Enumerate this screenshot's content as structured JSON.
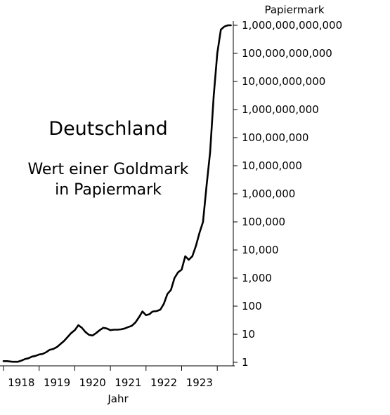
{
  "chart_data": {
    "type": "line",
    "title": "Deutschland",
    "subtitle_lines": [
      "Wert einer Goldmark",
      "in Papiermark"
    ],
    "xlabel": "Jahr",
    "ylabel": "Papiermark",
    "y_scale": "log",
    "ylim": [
      1,
      1000000000000
    ],
    "xlim": [
      1917.5,
      1923.95
    ],
    "x_ticks": [
      1918,
      1919,
      1920,
      1921,
      1922,
      1923
    ],
    "x_tick_labels": [
      "1918",
      "1919",
      "1920",
      "1921",
      "1922",
      "1923"
    ],
    "y_ticks": [
      1,
      10,
      100,
      1000,
      10000,
      100000,
      1000000,
      10000000,
      100000000,
      1000000000,
      10000000000,
      100000000000,
      1000000000000
    ],
    "y_tick_labels": [
      "1",
      "10",
      "100",
      "1,000",
      "10,000",
      "100,000",
      "1,000,000",
      "10,000,000",
      "100,000,000",
      "1,000,000,000",
      "10,000,000,000",
      "100,000,000,000",
      "1,000,000,000,000"
    ],
    "grid": false,
    "line_color": "#000000",
    "series": [
      {
        "x": [
          1917.5,
          1917.6,
          1917.75,
          1917.9,
          1918.0,
          1918.1,
          1918.2,
          1918.3,
          1918.4,
          1918.5,
          1918.6,
          1918.7,
          1918.8,
          1918.9,
          1919.0,
          1919.1,
          1919.2,
          1919.3,
          1919.4,
          1919.5,
          1919.6,
          1919.7,
          1919.8,
          1919.9,
          1920.0,
          1920.1,
          1920.2,
          1920.3,
          1920.4,
          1920.5,
          1920.6,
          1920.7,
          1920.8,
          1920.9,
          1921.0,
          1921.1,
          1921.2,
          1921.3,
          1921.4,
          1921.5,
          1921.6,
          1921.65,
          1921.7,
          1921.8,
          1921.9,
          1922.0,
          1922.1,
          1922.2,
          1922.3,
          1922.4,
          1922.5,
          1922.6,
          1922.7,
          1922.8,
          1922.9,
          1923.0,
          1923.1,
          1923.2,
          1923.3,
          1923.4,
          1923.5,
          1923.6,
          1923.7,
          1923.8,
          1923.88
        ],
        "values": [
          1.1,
          1.1,
          1.05,
          1.05,
          1.15,
          1.3,
          1.4,
          1.6,
          1.7,
          1.9,
          2.0,
          2.3,
          2.8,
          3.0,
          3.5,
          4.5,
          5.8,
          8.0,
          11.0,
          14.0,
          21.0,
          17.0,
          12.0,
          9.5,
          9.0,
          11.0,
          14.0,
          17.0,
          16.0,
          14.0,
          14.5,
          14.5,
          15.0,
          16.0,
          18.0,
          20.0,
          26.0,
          40.0,
          65.0,
          48.0,
          52.0,
          60.0,
          65.0,
          67.0,
          75.0,
          120.0,
          270.0,
          380.0,
          1000.0,
          1600.0,
          2000.0,
          6000.0,
          4500.0,
          6000.0,
          14000.0,
          40000.0,
          100000.0,
          2000000.0,
          30000000.0,
          3000000000.0,
          100000000000.0,
          700000000000.0,
          900000000000.0,
          1000000000000.0,
          1000000000000.0
        ]
      }
    ]
  }
}
